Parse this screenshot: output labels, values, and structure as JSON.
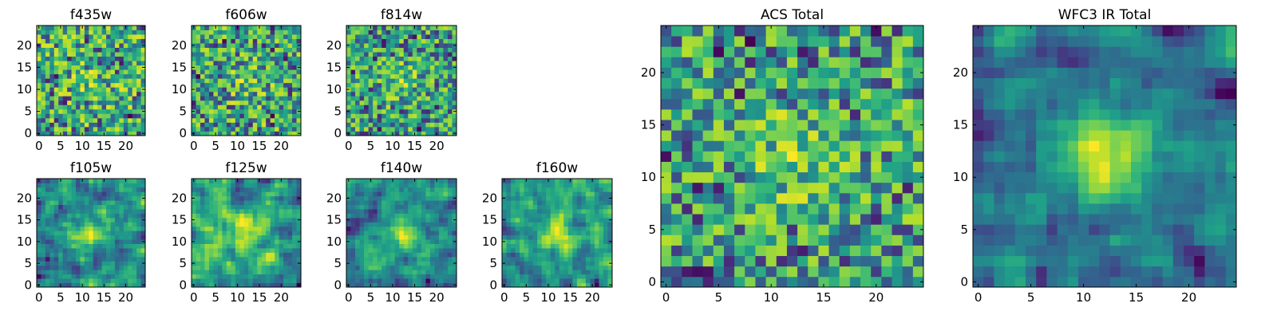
{
  "chart_data": [
    {
      "type": "heatmap",
      "title": "f435w",
      "size": 25,
      "xticks": [
        "0",
        "5",
        "10",
        "15",
        "20"
      ],
      "yticks": [
        "0",
        "5",
        "10",
        "15",
        "20"
      ],
      "colormap": "viridis",
      "seed": 11,
      "mode": "noise",
      "peak": 0.15
    },
    {
      "type": "heatmap",
      "title": "f606w",
      "size": 25,
      "xticks": [
        "0",
        "5",
        "10",
        "15",
        "20"
      ],
      "yticks": [
        "0",
        "5",
        "10",
        "15",
        "20"
      ],
      "colormap": "viridis",
      "seed": 23,
      "mode": "noise",
      "peak": 0.2
    },
    {
      "type": "heatmap",
      "title": "f814w",
      "size": 25,
      "xticks": [
        "0",
        "5",
        "10",
        "15",
        "20"
      ],
      "yticks": [
        "0",
        "5",
        "10",
        "15",
        "20"
      ],
      "colormap": "viridis",
      "seed": 37,
      "mode": "noise",
      "peak": 0.25
    },
    {
      "type": "heatmap",
      "title": "f105w",
      "size": 25,
      "xticks": [
        "0",
        "5",
        "10",
        "15",
        "20"
      ],
      "yticks": [
        "0",
        "5",
        "10",
        "15",
        "20"
      ],
      "colormap": "viridis",
      "seed": 41,
      "mode": "smooth",
      "peak": 0.3
    },
    {
      "type": "heatmap",
      "title": "f125w",
      "size": 25,
      "xticks": [
        "0",
        "5",
        "10",
        "15",
        "20"
      ],
      "yticks": [
        "0",
        "5",
        "10",
        "15",
        "20"
      ],
      "colormap": "viridis",
      "seed": 53,
      "mode": "smooth",
      "peak": 0.25
    },
    {
      "type": "heatmap",
      "title": "f140w",
      "size": 25,
      "xticks": [
        "0",
        "5",
        "10",
        "15",
        "20"
      ],
      "yticks": [
        "0",
        "5",
        "10",
        "15",
        "20"
      ],
      "colormap": "viridis",
      "seed": 67,
      "mode": "smooth",
      "peak": 0.3
    },
    {
      "type": "heatmap",
      "title": "f160w",
      "size": 25,
      "xticks": [
        "0",
        "5",
        "10",
        "15",
        "20"
      ],
      "yticks": [
        "0",
        "5",
        "10",
        "15",
        "20"
      ],
      "colormap": "viridis",
      "seed": 79,
      "mode": "smooth",
      "peak": 0.35
    },
    {
      "type": "heatmap",
      "title": "ACS Total",
      "size": 25,
      "xticks": [
        "0",
        "5",
        "10",
        "15",
        "20"
      ],
      "yticks": [
        "0",
        "5",
        "10",
        "15",
        "20"
      ],
      "colormap": "viridis",
      "seed": 97,
      "mode": "noise",
      "peak": 0.3
    },
    {
      "type": "heatmap",
      "title": "WFC3 IR Total",
      "size": 25,
      "xticks": [
        "0",
        "5",
        "10",
        "15",
        "20"
      ],
      "yticks": [
        "0",
        "5",
        "10",
        "15",
        "20"
      ],
      "colormap": "viridis",
      "seed": 113,
      "mode": "smooth",
      "peak": 0.55
    }
  ]
}
